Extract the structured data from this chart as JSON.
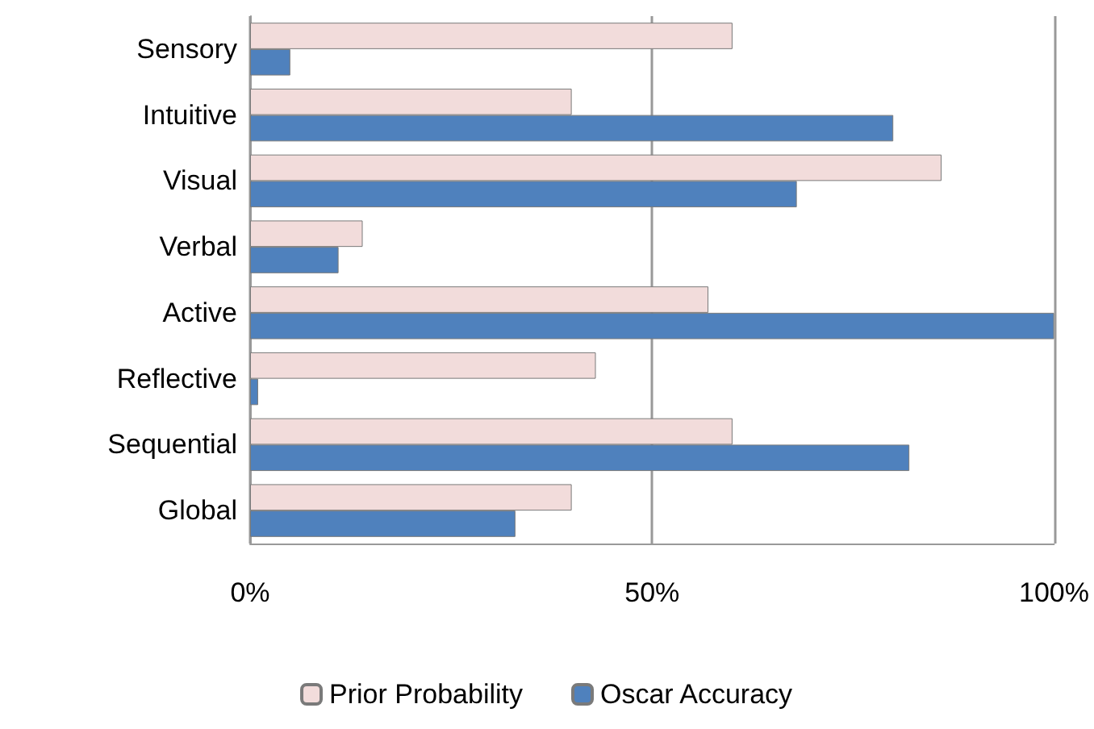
{
  "chart_data": {
    "type": "bar",
    "orientation": "horizontal",
    "categories": [
      "Sensory",
      "Intuitive",
      "Visual",
      "Verbal",
      "Active",
      "Reflective",
      "Sequential",
      "Global"
    ],
    "series": [
      {
        "name": "Prior Probability",
        "color": "#f2dcdb",
        "values": [
          60,
          40,
          86,
          14,
          57,
          43,
          60,
          40
        ]
      },
      {
        "name": "Oscar Accuracy",
        "color": "#4f81bd",
        "values": [
          5,
          80,
          68,
          11,
          100,
          1,
          82,
          33
        ]
      }
    ],
    "xlim": [
      0,
      100
    ],
    "xticks": [
      {
        "value": 0,
        "label": "0%"
      },
      {
        "value": 50,
        "label": "50%"
      },
      {
        "value": 100,
        "label": "100%"
      }
    ],
    "grid": "x",
    "legend": "bottom"
  }
}
